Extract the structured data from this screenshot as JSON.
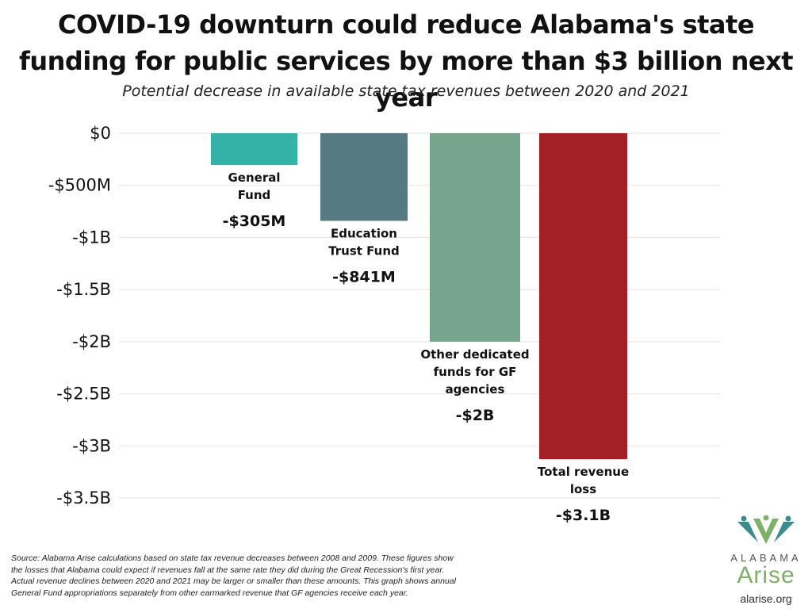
{
  "header": {
    "title": "COVID-19 downturn could reduce Alabama's state funding for public services by more than $3 billion next year",
    "subtitle": "Potential decrease in available state tax revenues between 2020 and 2021"
  },
  "chart_data": {
    "type": "bar",
    "title": "COVID-19 downturn could reduce Alabama's state funding for public services by more than $3 billion next year",
    "subtitle": "Potential decrease in available state tax revenues between 2020 and 2021",
    "categories": [
      "General Fund",
      "Education Trust Fund",
      "Other dedicated funds for GF agencies",
      "Total revenue loss"
    ],
    "category_lines": [
      [
        "General",
        "Fund"
      ],
      [
        "Education",
        "Trust Fund"
      ],
      [
        "Other dedicated",
        "funds for GF",
        "agencies"
      ],
      [
        "Total revenue",
        "loss"
      ]
    ],
    "values": [
      -305000000,
      -841000000,
      -2000000000,
      -3128000000
    ],
    "value_labels": [
      "-$305M",
      "-$841M",
      "-$2B",
      "-$3.1B"
    ],
    "colors": [
      "#35b2a8",
      "#567a82",
      "#76a48c",
      "#a32026"
    ],
    "y_ticks": [
      0,
      -500000000,
      -1000000000,
      -1500000000,
      -2000000000,
      -2500000000,
      -3000000000,
      -3500000000
    ],
    "y_tick_labels": [
      "$0",
      "-$500M",
      "-$1B",
      "-$1.5B",
      "-$2B",
      "-$2.5B",
      "-$3B",
      "-$3.5B"
    ],
    "ylim": [
      -3500000000,
      0
    ],
    "grid": true,
    "xlabel": "",
    "ylabel": ""
  },
  "footer": {
    "source": "Source: Alabama Arise calculations based on state tax revenue decreases between 2008 and 2009. These figures show the losses that Alabama could expect if revenues fall at the same rate they did during the Great Recession's first year. Actual revenue declines between 2020 and 2021 may be larger or smaller than these amounts. This graph shows annual General Fund appropriations separately from other earmarked revenue that GF agencies receive each year."
  },
  "logo": {
    "org_top": "ALABAMA",
    "org_main": "Arise",
    "site": "alarise.org",
    "colors": {
      "teal": "#3c8c8f",
      "green": "#7fb069",
      "gray": "#555555"
    }
  }
}
